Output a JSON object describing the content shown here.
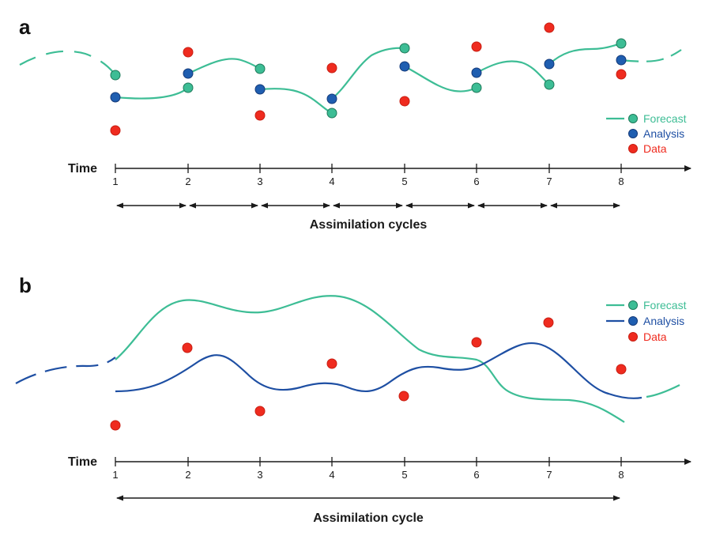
{
  "colors": {
    "forecast": "#3dbd95",
    "analysis": "#1e4fa3",
    "data": "#ef2b1f",
    "axis": "#1a1a1a",
    "analysis_dot": "#1f5eb0",
    "forecast_dot_stroke": "#1e7a5a",
    "analysis_dot_stroke": "#143a7a",
    "data_dot_stroke": "#c81e12"
  },
  "panel_a": {
    "letter": "a",
    "time_label": "Time",
    "ticks": [
      "1",
      "2",
      "3",
      "4",
      "5",
      "6",
      "7",
      "8"
    ],
    "cycle_label": "Assimilation cycles",
    "legend": {
      "forecast": "Forecast",
      "analysis": "Analysis",
      "data": "Data"
    }
  },
  "panel_b": {
    "letter": "b",
    "time_label": "Time",
    "ticks": [
      "1",
      "2",
      "3",
      "4",
      "5",
      "6",
      "7",
      "8"
    ],
    "cycle_label": "Assimilation cycle",
    "legend": {
      "forecast": "Forecast",
      "analysis": "Analysis",
      "data": "Data"
    }
  }
}
